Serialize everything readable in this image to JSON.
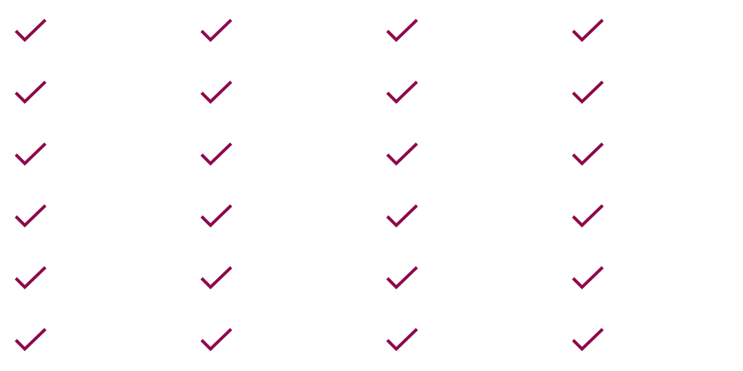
{
  "grid": {
    "rows": 6,
    "columns": 4,
    "icon": "checkmark-icon",
    "accent_color": "#8e0a4b",
    "background_color": "#ffffff"
  }
}
